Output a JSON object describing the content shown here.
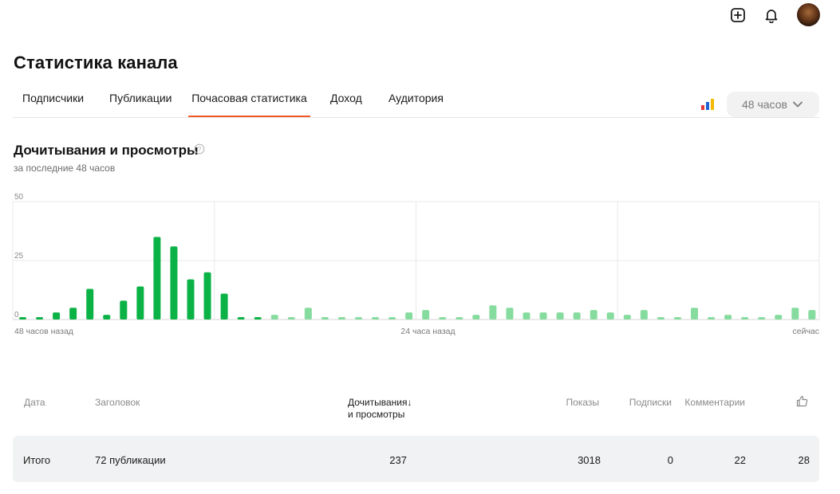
{
  "header": {
    "icons": [
      "plus-square-icon",
      "bell-icon",
      "avatar"
    ]
  },
  "page": {
    "title": "Статистика канала"
  },
  "tabs": [
    {
      "label": "Подписчики",
      "active": false
    },
    {
      "label": "Публикации",
      "active": false
    },
    {
      "label": "Почасовая статистика",
      "active": true
    },
    {
      "label": "Доход",
      "active": false
    },
    {
      "label": "Аудитория",
      "active": false
    }
  ],
  "controls": {
    "period": "48 часов",
    "chart_type_icon": "bar-chart-icon"
  },
  "section": {
    "title": "Дочитывания и просмотры",
    "subtitle": "за последние 48 часов"
  },
  "colors": {
    "accent": "#f05a28",
    "bar_recent": "#0bb347",
    "bar_older": "#86dc9e",
    "row_bg": "#f1f2f3"
  },
  "chart_data": {
    "type": "bar",
    "y_ticks": [
      "50",
      "25",
      "0"
    ],
    "x_labels": [
      "48 часов назад",
      "24 часа назад",
      "сейчас"
    ],
    "ylim": [
      0,
      50
    ],
    "grid": true,
    "values": [
      1,
      1,
      3,
      5,
      13,
      2,
      8,
      14,
      35,
      31,
      17,
      20,
      11,
      1,
      1,
      2,
      1,
      5,
      1,
      1,
      1,
      1,
      1,
      3,
      4,
      1,
      1,
      2,
      6,
      5,
      3,
      3,
      3,
      3,
      4,
      3,
      2,
      4,
      1,
      1,
      5,
      1,
      2,
      1,
      1,
      2,
      5,
      4
    ],
    "highlighted_count": 15
  },
  "table": {
    "headers": {
      "date": "Дата",
      "title": "Заголовок",
      "reads_line1": "Дочитывания",
      "reads_line2": "и просмотры",
      "sort_arrow": "↓",
      "shows": "Показы",
      "subs": "Подписки",
      "comments": "Комментарии",
      "likes_icon": "thumbs-up-icon"
    },
    "total": {
      "label": "Итого",
      "publications": "72 публикации",
      "reads": "237",
      "shows": "3018",
      "subs": "0",
      "comments": "22",
      "likes": "28"
    }
  }
}
